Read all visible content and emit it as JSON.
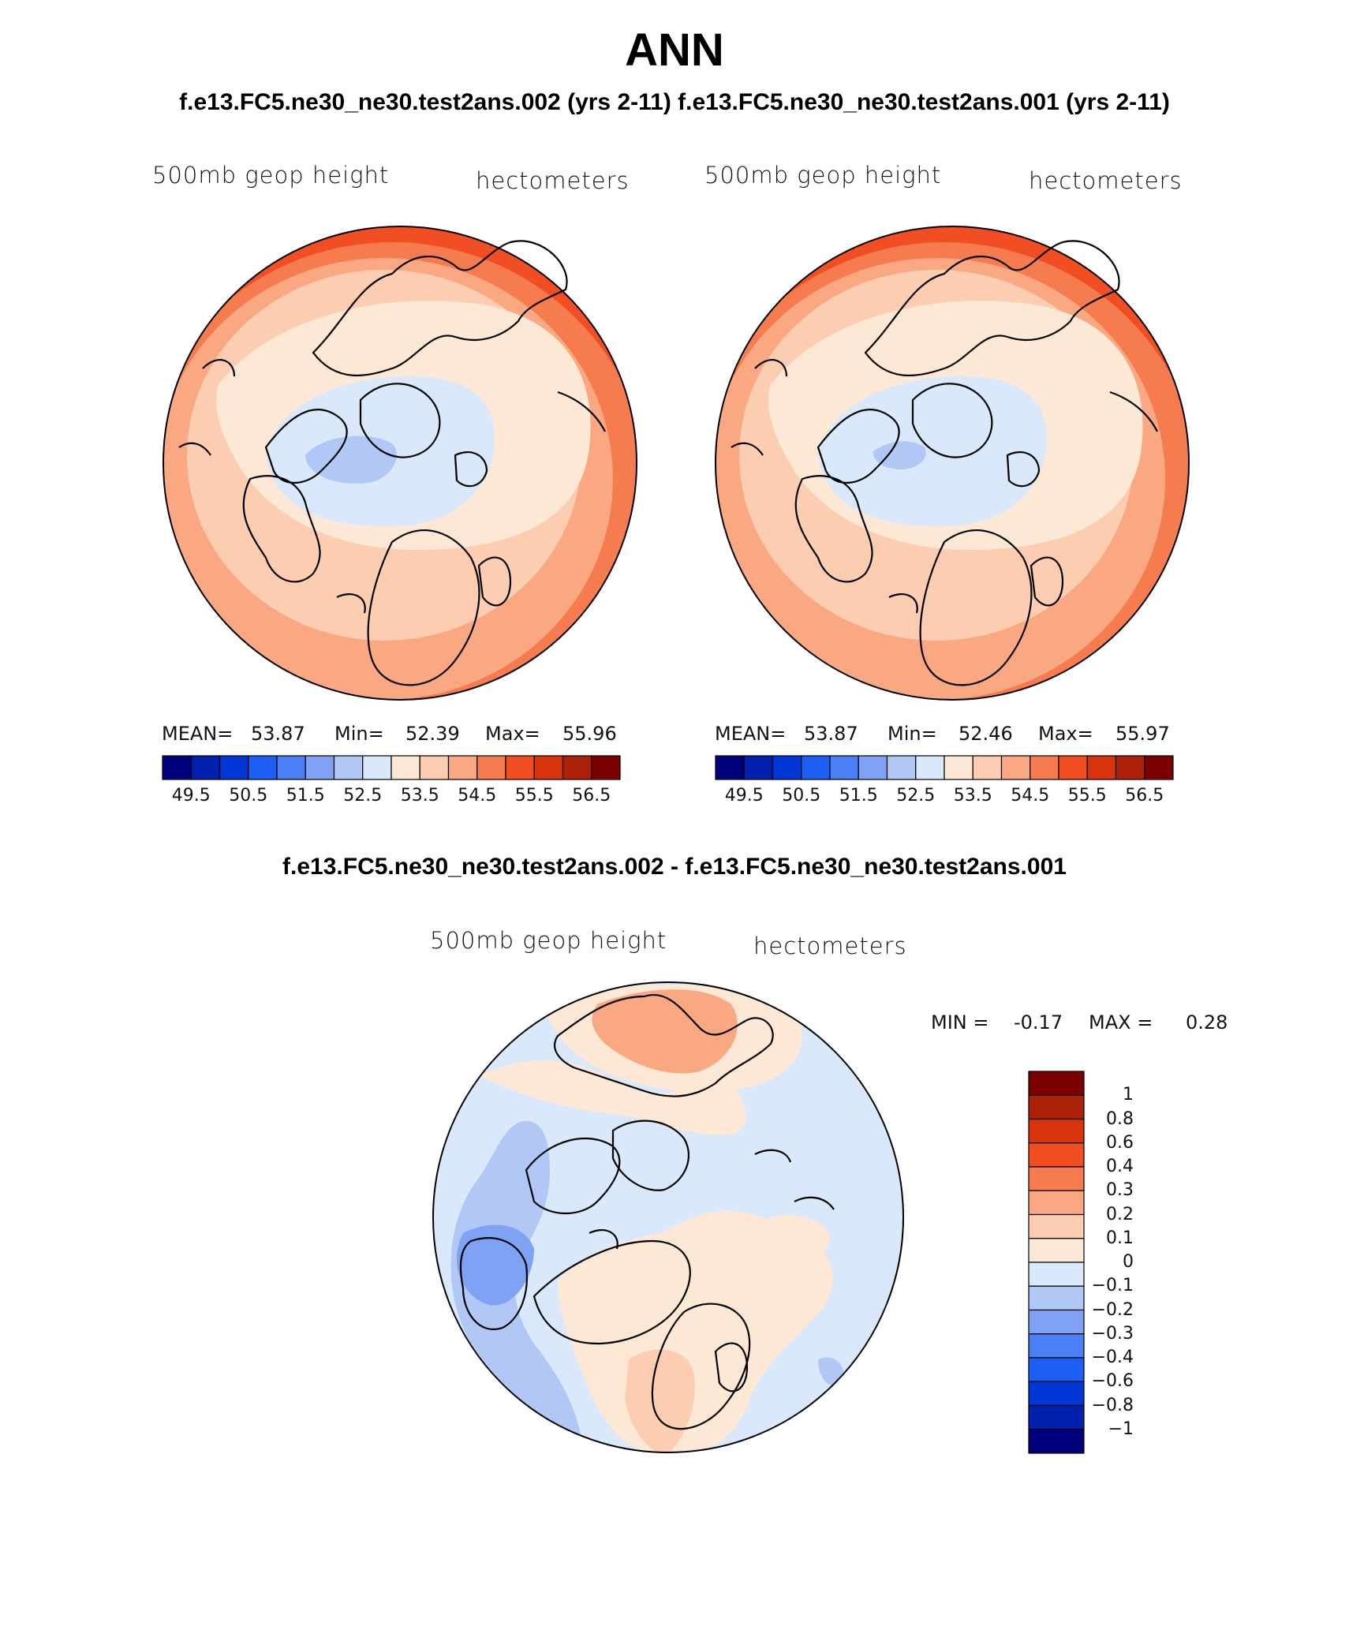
{
  "page": {
    "title": "ANN",
    "subtitle_top": "f.e13.FC5.ne30_ne30.test2ans.002 (yrs 2-11) f.e13.FC5.ne30_ne30.test2ans.001 (yrs 2-11)",
    "subtitle_diff": "f.e13.FC5.ne30_ne30.test2ans.002 - f.e13.FC5.ne30_ne30.test2ans.001"
  },
  "panels": [
    {
      "variable": "500mb geop height",
      "units": "hectometers",
      "mean_label": "MEAN=",
      "mean": "53.87",
      "min_label": "Min=",
      "min": "52.39",
      "max_label": "Max=",
      "max": "55.96"
    },
    {
      "variable": "500mb geop height",
      "units": "hectometers",
      "mean_label": "MEAN=",
      "mean": "53.87",
      "min_label": "Min=",
      "min": "52.46",
      "max_label": "Max=",
      "max": "55.97"
    }
  ],
  "diff_panel": {
    "variable": "500mb geop height",
    "units": "hectometers",
    "min_label": "MIN =",
    "min": "-0.17",
    "max_label": "MAX =",
    "max": "0.28"
  },
  "colorbar_main": {
    "colors": [
      "#00007f",
      "#0021b0",
      "#0037d6",
      "#1d5ff4",
      "#4a7ff6",
      "#7fa2f4",
      "#b1c8f6",
      "#d9e8fa",
      "#fde7d5",
      "#fccdb1",
      "#f9a881",
      "#f67c4f",
      "#f14f23",
      "#d8330b",
      "#ad2008",
      "#7c0000"
    ],
    "ticks": [
      "49.5",
      "50.5",
      "51.5",
      "52.5",
      "53.5",
      "54.5",
      "55.5",
      "56.5"
    ]
  },
  "colorbar_diff": {
    "colors": [
      "#7c0000",
      "#ad2008",
      "#d8330b",
      "#f14f23",
      "#f67c4f",
      "#f9a881",
      "#fccdb1",
      "#fde7d5",
      "#d9e8fa",
      "#b1c8f6",
      "#7fa2f4",
      "#4a7ff6",
      "#1d5ff4",
      "#0037d6",
      "#0021b0",
      "#00007f"
    ],
    "ticks": [
      "1",
      "0.8",
      "0.6",
      "0.4",
      "0.3",
      "0.2",
      "0.1",
      "0",
      "−0.1",
      "−0.2",
      "−0.3",
      "−0.4",
      "−0.6",
      "−0.8",
      "−1"
    ]
  }
}
